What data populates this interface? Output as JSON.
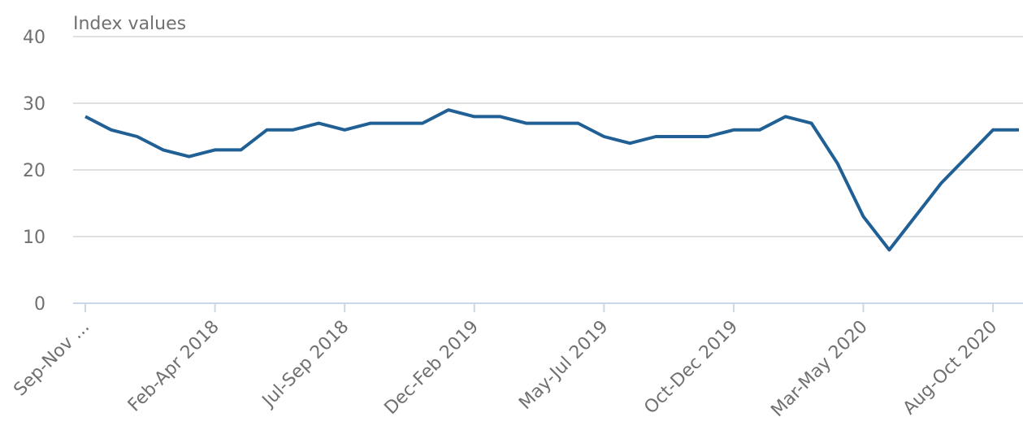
{
  "chart_data": {
    "type": "line",
    "y_label": "Index values",
    "categories": [
      "Sep-Nov ...",
      null,
      null,
      null,
      null,
      "Feb-Apr 2018",
      null,
      null,
      null,
      null,
      "Jul-Sep 2018",
      null,
      null,
      null,
      null,
      "Dec-Feb 2019",
      null,
      null,
      null,
      null,
      "May-Jul 2019",
      null,
      null,
      null,
      null,
      "Oct-Dec 2019",
      null,
      null,
      null,
      null,
      "Mar-May 2020",
      null,
      null,
      null,
      null,
      "Aug-Oct 2020",
      null
    ],
    "series": [
      {
        "color": "#206095",
        "values": [
          28,
          26,
          25,
          23,
          22,
          23,
          23,
          26,
          26,
          27,
          26,
          27,
          27,
          27,
          29,
          28,
          28,
          27,
          27,
          27,
          25,
          24,
          25,
          25,
          25,
          26,
          26,
          28,
          27,
          21,
          13,
          8,
          13,
          18,
          22,
          26,
          26
        ]
      }
    ],
    "ylim": [
      0,
      40
    ],
    "yticks": [
      0,
      10,
      20,
      30,
      40
    ],
    "grid": true
  }
}
